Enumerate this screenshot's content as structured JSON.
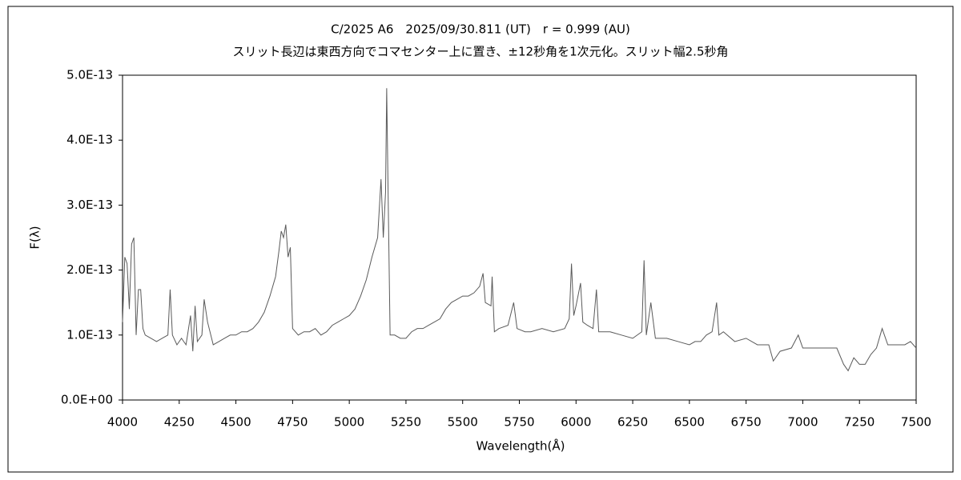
{
  "chart_data": {
    "type": "line",
    "title": "C/2025 A6　2025/09/30.811 (UT)　r = 0.999 (AU)",
    "subtitle": "スリット長辺は東西方向でコマセンター上に置き、±12秒角を1次元化。スリット幅2.5秒角",
    "xlabel": "Wavelength(Å)",
    "ylabel": "F(λ)",
    "xlim": [
      4000,
      7500
    ],
    "xticks": [
      4000,
      4250,
      4500,
      4750,
      5000,
      5250,
      5500,
      5750,
      6000,
      6250,
      6500,
      6750,
      7000,
      7250,
      7500
    ],
    "ylim": [
      0,
      5e-13
    ],
    "yticks": [
      {
        "value": 0,
        "label": "0.0E+00"
      },
      {
        "value": 1e-13,
        "label": "1.0E-13"
      },
      {
        "value": 2e-13,
        "label": "2.0E-13"
      },
      {
        "value": 3e-13,
        "label": "3.0E-13"
      },
      {
        "value": 4e-13,
        "label": "4.0E-13"
      },
      {
        "value": 5e-13,
        "label": "5.0E-13"
      }
    ],
    "grid": false,
    "series": [
      {
        "color": "#5a5a5a",
        "x": [
          4000,
          4010,
          4020,
          4030,
          4040,
          4050,
          4060,
          4070,
          4080,
          4090,
          4100,
          4125,
          4150,
          4175,
          4200,
          4210,
          4220,
          4240,
          4260,
          4280,
          4300,
          4310,
          4320,
          4330,
          4350,
          4360,
          4375,
          4400,
          4425,
          4450,
          4475,
          4500,
          4525,
          4550,
          4575,
          4600,
          4625,
          4650,
          4675,
          4690,
          4700,
          4710,
          4720,
          4730,
          4740,
          4750,
          4775,
          4800,
          4825,
          4850,
          4875,
          4900,
          4925,
          4950,
          4975,
          5000,
          5025,
          5050,
          5075,
          5100,
          5125,
          5140,
          5150,
          5160,
          5165,
          5170,
          5180,
          5200,
          5225,
          5250,
          5275,
          5300,
          5325,
          5350,
          5375,
          5400,
          5425,
          5450,
          5475,
          5500,
          5525,
          5550,
          5575,
          5590,
          5600,
          5625,
          5630,
          5640,
          5660,
          5700,
          5725,
          5740,
          5775,
          5800,
          5850,
          5900,
          5950,
          5970,
          5980,
          5990,
          6000,
          6020,
          6030,
          6050,
          6075,
          6090,
          6100,
          6150,
          6200,
          6250,
          6290,
          6300,
          6310,
          6330,
          6350,
          6400,
          6450,
          6500,
          6525,
          6550,
          6575,
          6600,
          6620,
          6630,
          6650,
          6700,
          6750,
          6800,
          6850,
          6870,
          6900,
          6950,
          6980,
          7000,
          7050,
          7100,
          7150,
          7180,
          7200,
          7225,
          7250,
          7275,
          7300,
          7325,
          7350,
          7375,
          7400,
          7450,
          7475,
          7500
        ],
        "values": [
          1.2e-13,
          2.2e-13,
          2.1e-13,
          1.4e-13,
          2.4e-13,
          2.5e-13,
          1e-13,
          1.7e-13,
          1.7e-13,
          1.1e-13,
          1e-13,
          9.5e-14,
          9e-14,
          9.5e-14,
          1e-13,
          1.7e-13,
          1e-13,
          8.5e-14,
          9.5e-14,
          8.5e-14,
          1.3e-13,
          7.5e-14,
          1.45e-13,
          9e-14,
          1e-13,
          1.55e-13,
          1.2e-13,
          8.5e-14,
          9e-14,
          9.5e-14,
          1e-13,
          1e-13,
          1.05e-13,
          1.05e-13,
          1.1e-13,
          1.2e-13,
          1.35e-13,
          1.6e-13,
          1.9e-13,
          2.3e-13,
          2.6e-13,
          2.5e-13,
          2.7e-13,
          2.2e-13,
          2.35e-13,
          1.1e-13,
          1e-13,
          1.05e-13,
          1.05e-13,
          1.1e-13,
          1e-13,
          1.05e-13,
          1.15e-13,
          1.2e-13,
          1.25e-13,
          1.3e-13,
          1.4e-13,
          1.6e-13,
          1.85e-13,
          2.2e-13,
          2.5e-13,
          3.4e-13,
          2.5e-13,
          3.2e-13,
          4.8e-13,
          3.5e-13,
          1e-13,
          1e-13,
          9.5e-14,
          9.5e-14,
          1.05e-13,
          1.1e-13,
          1.1e-13,
          1.15e-13,
          1.2e-13,
          1.25e-13,
          1.4e-13,
          1.5e-13,
          1.55e-13,
          1.6e-13,
          1.6e-13,
          1.65e-13,
          1.75e-13,
          1.95e-13,
          1.5e-13,
          1.45e-13,
          1.9e-13,
          1.05e-13,
          1.1e-13,
          1.15e-13,
          1.5e-13,
          1.1e-13,
          1.05e-13,
          1.05e-13,
          1.1e-13,
          1.05e-13,
          1.1e-13,
          1.25e-13,
          2.1e-13,
          1.3e-13,
          1.45e-13,
          1.8e-13,
          1.2e-13,
          1.15e-13,
          1.1e-13,
          1.7e-13,
          1.05e-13,
          1.05e-13,
          1e-13,
          9.5e-14,
          1.05e-13,
          2.15e-13,
          1e-13,
          1.5e-13,
          9.5e-14,
          9.5e-14,
          9e-14,
          8.5e-14,
          9e-14,
          9e-14,
          1e-13,
          1.05e-13,
          1.5e-13,
          1e-13,
          1.05e-13,
          9e-14,
          9.5e-14,
          8.5e-14,
          8.5e-14,
          6e-14,
          7.5e-14,
          8e-14,
          1e-13,
          8e-14,
          8e-14,
          8e-14,
          8e-14,
          5.5e-14,
          4.5e-14,
          6.5e-14,
          5.5e-14,
          5.5e-14,
          7e-14,
          8e-14,
          1.1e-13,
          8.5e-14,
          8.5e-14,
          8.5e-14,
          9e-14,
          8e-14
        ]
      }
    ]
  }
}
